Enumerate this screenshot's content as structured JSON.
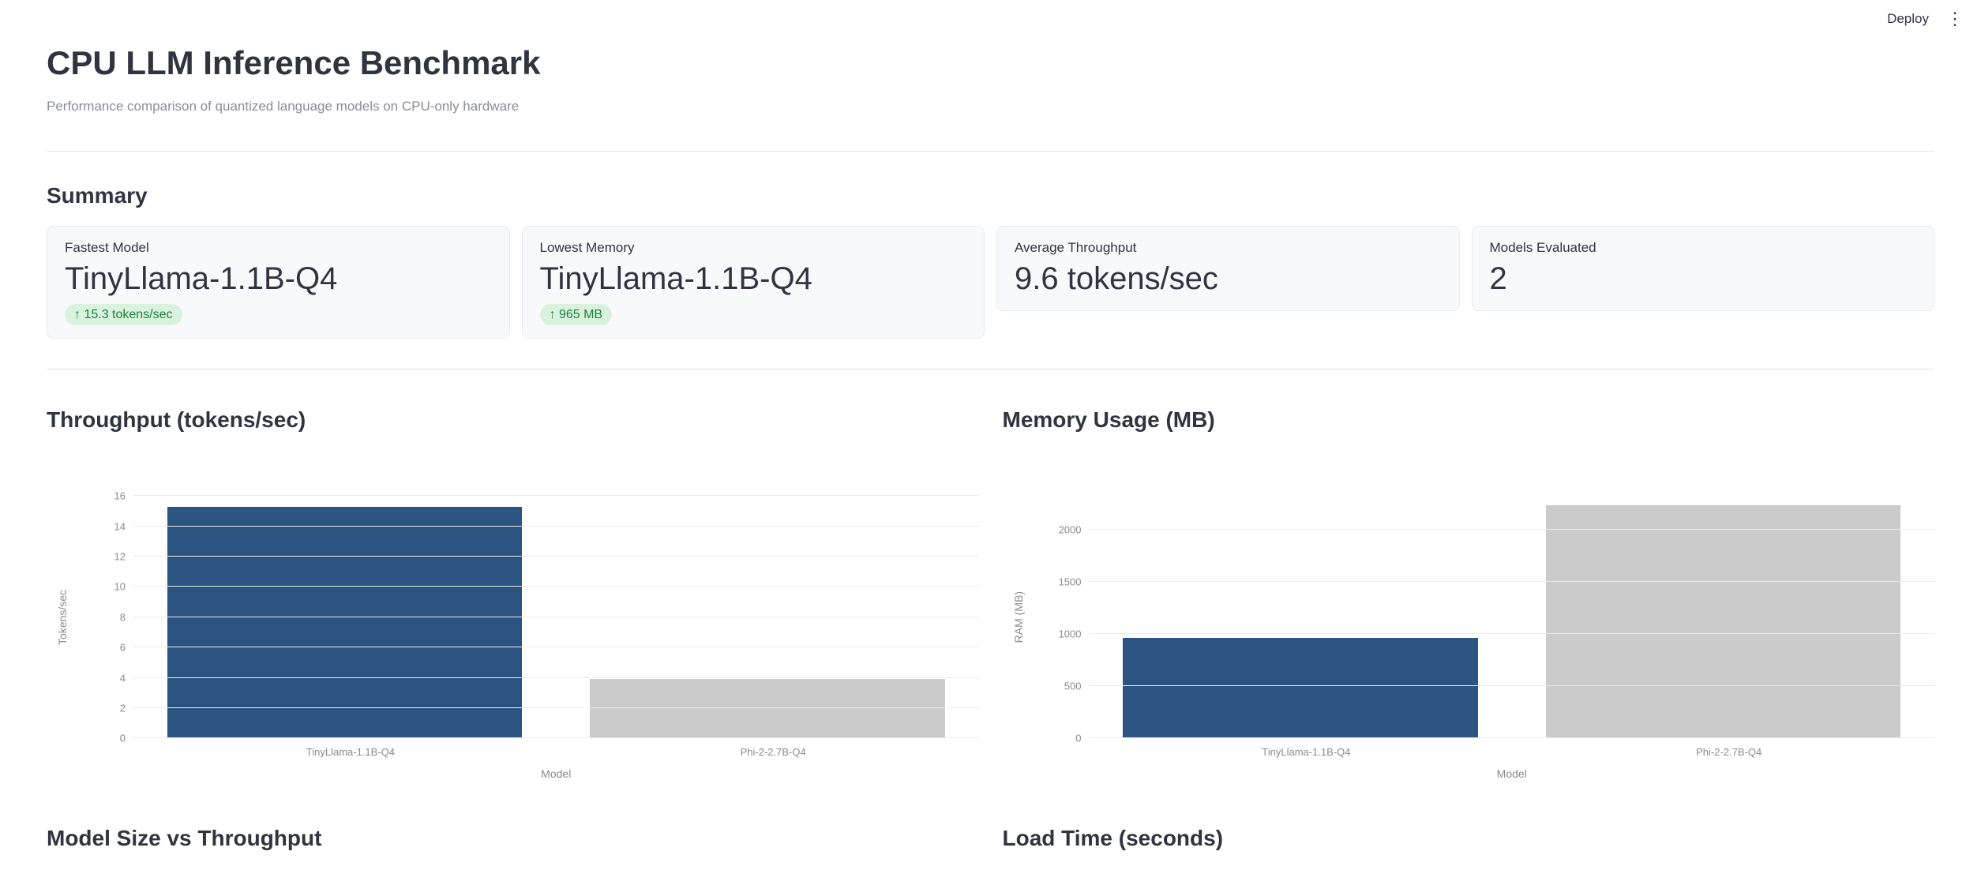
{
  "header": {
    "deploy_label": "Deploy",
    "menu_icon_glyph": "⋮"
  },
  "page": {
    "title": "CPU LLM Inference Benchmark",
    "subtitle": "Performance comparison of quantized language models on CPU-only hardware"
  },
  "summary": {
    "heading": "Summary",
    "cards": [
      {
        "label": "Fastest Model",
        "value": "TinyLlama-1.1B-Q4",
        "delta": "↑ 15.3 tokens/sec"
      },
      {
        "label": "Lowest Memory",
        "value": "TinyLlama-1.1B-Q4",
        "delta": "↑ 965 MB"
      },
      {
        "label": "Average Throughput",
        "value": "9.6 tokens/sec",
        "delta": ""
      },
      {
        "label": "Models Evaluated",
        "value": "2",
        "delta": ""
      }
    ]
  },
  "sections": {
    "throughput_heading": "Throughput (tokens/sec)",
    "memory_heading": "Memory Usage (MB)",
    "scatter_heading": "Model Size vs Throughput",
    "load_time_heading": "Load Time (seconds)"
  },
  "colors": {
    "accent_bar": "#2b5481",
    "muted_bar": "#cbcbcb",
    "delta_positive_bg": "#d9f2de",
    "delta_positive_text": "#1c7f37"
  },
  "chart_data": [
    {
      "type": "bar",
      "title": "Throughput (tokens/sec)",
      "categories": [
        "TinyLlama-1.1B-Q4",
        "Phi-2-2.7B-Q4"
      ],
      "values": [
        15.3,
        3.9
      ],
      "bar_colors": [
        "#2b5481",
        "#cbcbcb"
      ],
      "xlabel": "Model",
      "ylabel": "Tokens/sec",
      "ylim": [
        0,
        16
      ],
      "yticks": [
        0,
        2,
        4,
        6,
        8,
        10,
        12,
        14,
        16
      ],
      "grid": true,
      "legend": false
    },
    {
      "type": "bar",
      "title": "Memory Usage (MB)",
      "categories": [
        "TinyLlama-1.1B-Q4",
        "Phi-2-2.7B-Q4"
      ],
      "values": [
        965,
        2230
      ],
      "bar_colors": [
        "#2b5481",
        "#cbcbcb"
      ],
      "xlabel": "Model",
      "ylabel": "RAM (MB)",
      "ylim": [
        0,
        2320
      ],
      "yticks": [
        0,
        500,
        1000,
        1500,
        2000
      ],
      "grid": true,
      "legend": false
    }
  ]
}
